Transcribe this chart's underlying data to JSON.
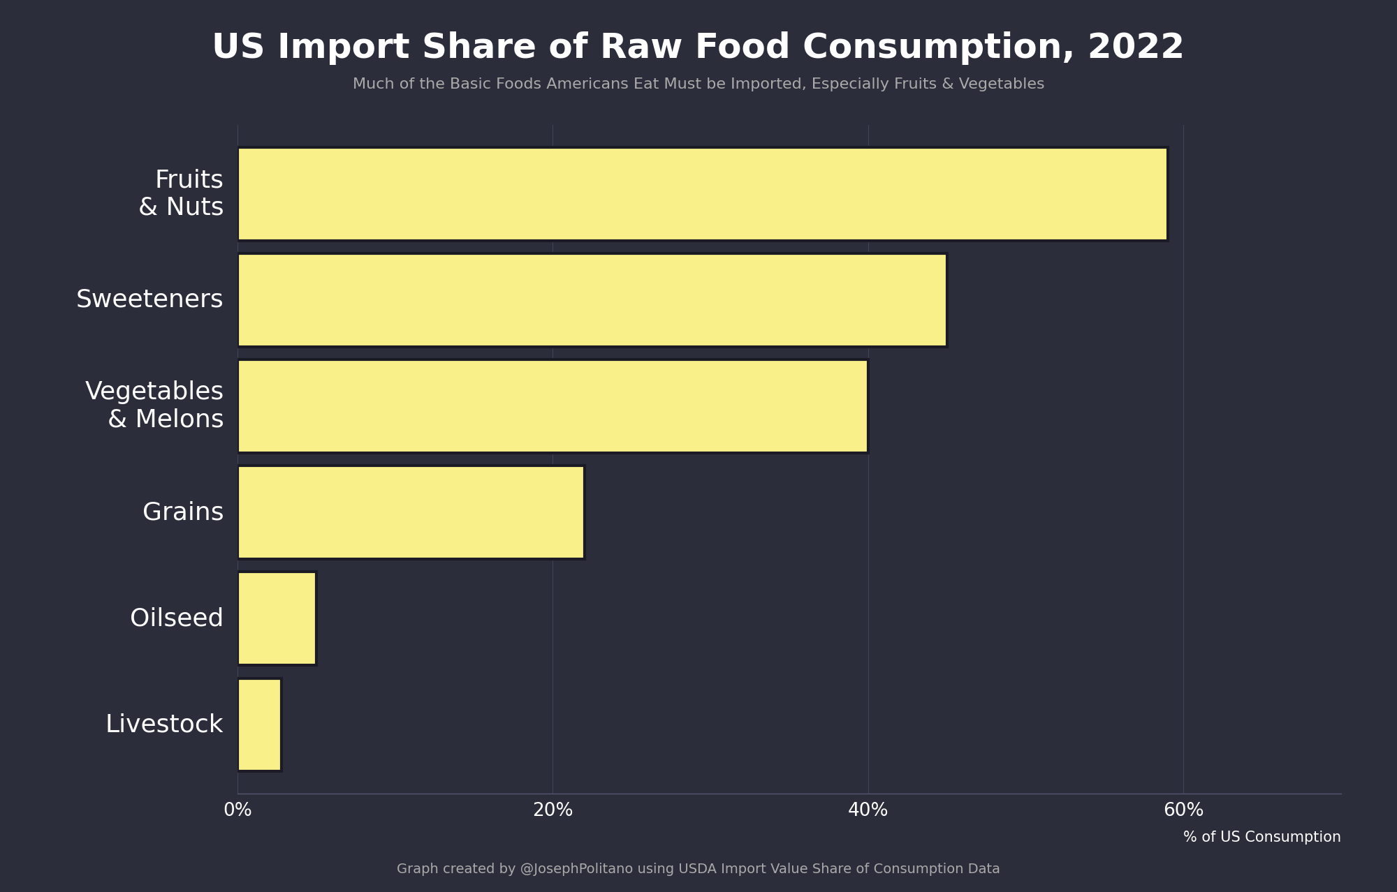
{
  "title": "US Import Share of Raw Food Consumption, 2022",
  "subtitle": "Much of the Basic Foods Americans Eat Must be Imported, Especially Fruits & Vegetables",
  "caption": "Graph created by @JosephPolitano using USDA Import Value Share of Consumption Data",
  "xlabel": "% of US Consumption",
  "categories": [
    "Fruits\n& Nuts",
    "Sweeteners",
    "Vegetables\n& Melons",
    "Grains",
    "Oilseed",
    "Livestock"
  ],
  "values": [
    59,
    45,
    40,
    22,
    5,
    2.8
  ],
  "bar_color": "#FAF08A",
  "background_color": "#2b2d3a",
  "axes_color": "#2b2d3a",
  "text_color": "#ffffff",
  "subtitle_color": "#aaaaaa",
  "caption_color": "#aaaaaa",
  "grid_color": "#404255",
  "spine_color": "#555770",
  "title_fontsize": 36,
  "subtitle_fontsize": 16,
  "label_fontsize": 26,
  "tick_fontsize": 19,
  "caption_fontsize": 14,
  "xlabel_fontsize": 15,
  "xlim": [
    0,
    70
  ],
  "xticks": [
    0,
    20,
    40,
    60
  ],
  "xtick_labels": [
    "0%",
    "20%",
    "40%",
    "60%"
  ],
  "bar_height": 0.88,
  "bar_edge_color": "#1a1b24",
  "bar_linewidth": 3.0
}
